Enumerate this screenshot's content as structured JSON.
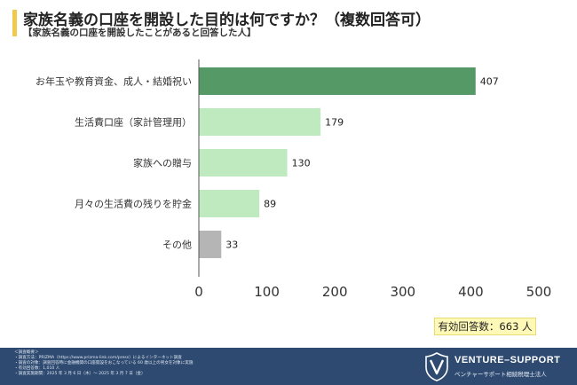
{
  "header": {
    "title": "家族名義の口座を開設した目的は何ですか？（複数回答可）",
    "subtitle": "【家族名義の口座を開設したことがあると回答した人】"
  },
  "colors": {
    "accent": "#f2c94c",
    "bar_top": "#559966",
    "bar_light": "#bfe9bf",
    "bar_other": "#b5b5b5",
    "footer_bg": "#2e4a70"
  },
  "chart_data": {
    "type": "bar",
    "orientation": "horizontal",
    "categories": [
      "お年玉や教育資金、成人・結婚祝い",
      "生活費口座（家計管理用）",
      "家族への贈与",
      "月々の生活費の残りを貯金",
      "その他"
    ],
    "values": [
      407,
      179,
      130,
      89,
      33
    ],
    "value_labels": [
      "407",
      "179",
      "130",
      "89",
      "33"
    ],
    "xlim": [
      0,
      500
    ],
    "xticks": [
      "0",
      "100",
      "200",
      "300",
      "400",
      "500"
    ],
    "grid": false,
    "xlabel": "",
    "ylabel": ""
  },
  "total": {
    "label": "有効回答数：663 人"
  },
  "footer": {
    "notes": [
      "＜調査概要＞",
      "・調査方法：PRIZMA（https://www.prizma-link.com/press）によるインターネット調査",
      "・調査の対象：調査回答時に金融機関の口座開設をおこなっている 60 歳以上の男女を対象に実施",
      "・有効回答数：1,010 人",
      "・調査実施期間：2025 年 3 月 6 日（木）～ 2025 年 3 月 7 日（金）"
    ],
    "brand_name": "VENTURE–SUPPORT",
    "brand_sub": "ベンチャーサポート相続税理士法人",
    "logo_icon": "v-shield-logo-icon"
  }
}
